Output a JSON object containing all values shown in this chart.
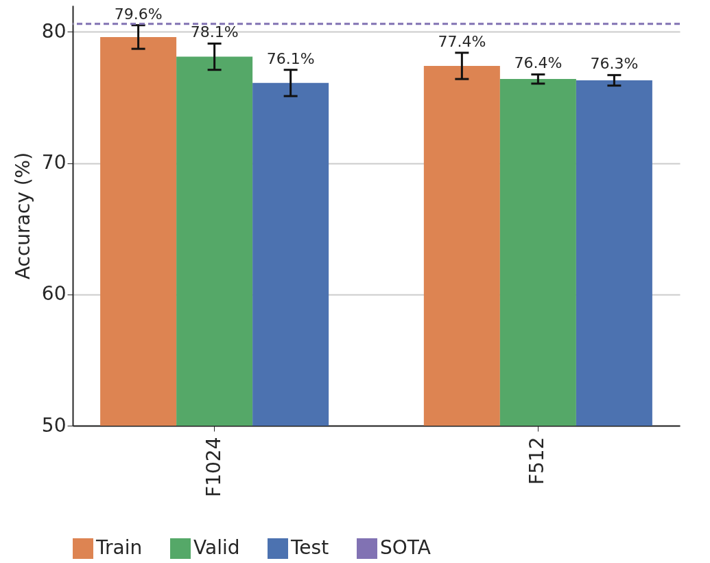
{
  "chart_data": {
    "type": "bar",
    "ylabel": "Accuracy (%)",
    "categories": [
      "F1024",
      "F512"
    ],
    "series": [
      {
        "name": "Train",
        "color": "#dd8452",
        "values": [
          79.6,
          77.4
        ],
        "errors": [
          0.9,
          1.0
        ],
        "value_labels": [
          "79.6%",
          "77.4%"
        ]
      },
      {
        "name": "Valid",
        "color": "#55a868",
        "values": [
          78.1,
          76.4
        ],
        "errors": [
          1.0,
          0.35
        ],
        "value_labels": [
          "78.1%",
          "76.4%"
        ]
      },
      {
        "name": "Test",
        "color": "#4c72b0",
        "values": [
          76.1,
          76.3
        ],
        "errors": [
          1.0,
          0.4
        ],
        "value_labels": [
          "76.1%",
          "76.3%"
        ]
      }
    ],
    "ref_lines": [
      {
        "axis": "y",
        "value": 80.6,
        "label": "SOTA",
        "color": "#8172b3",
        "line_style": "dashed"
      }
    ],
    "ylim": [
      50,
      82
    ],
    "yticks": [
      50,
      60,
      70,
      80
    ],
    "grid": "y",
    "legend": "bottom"
  }
}
